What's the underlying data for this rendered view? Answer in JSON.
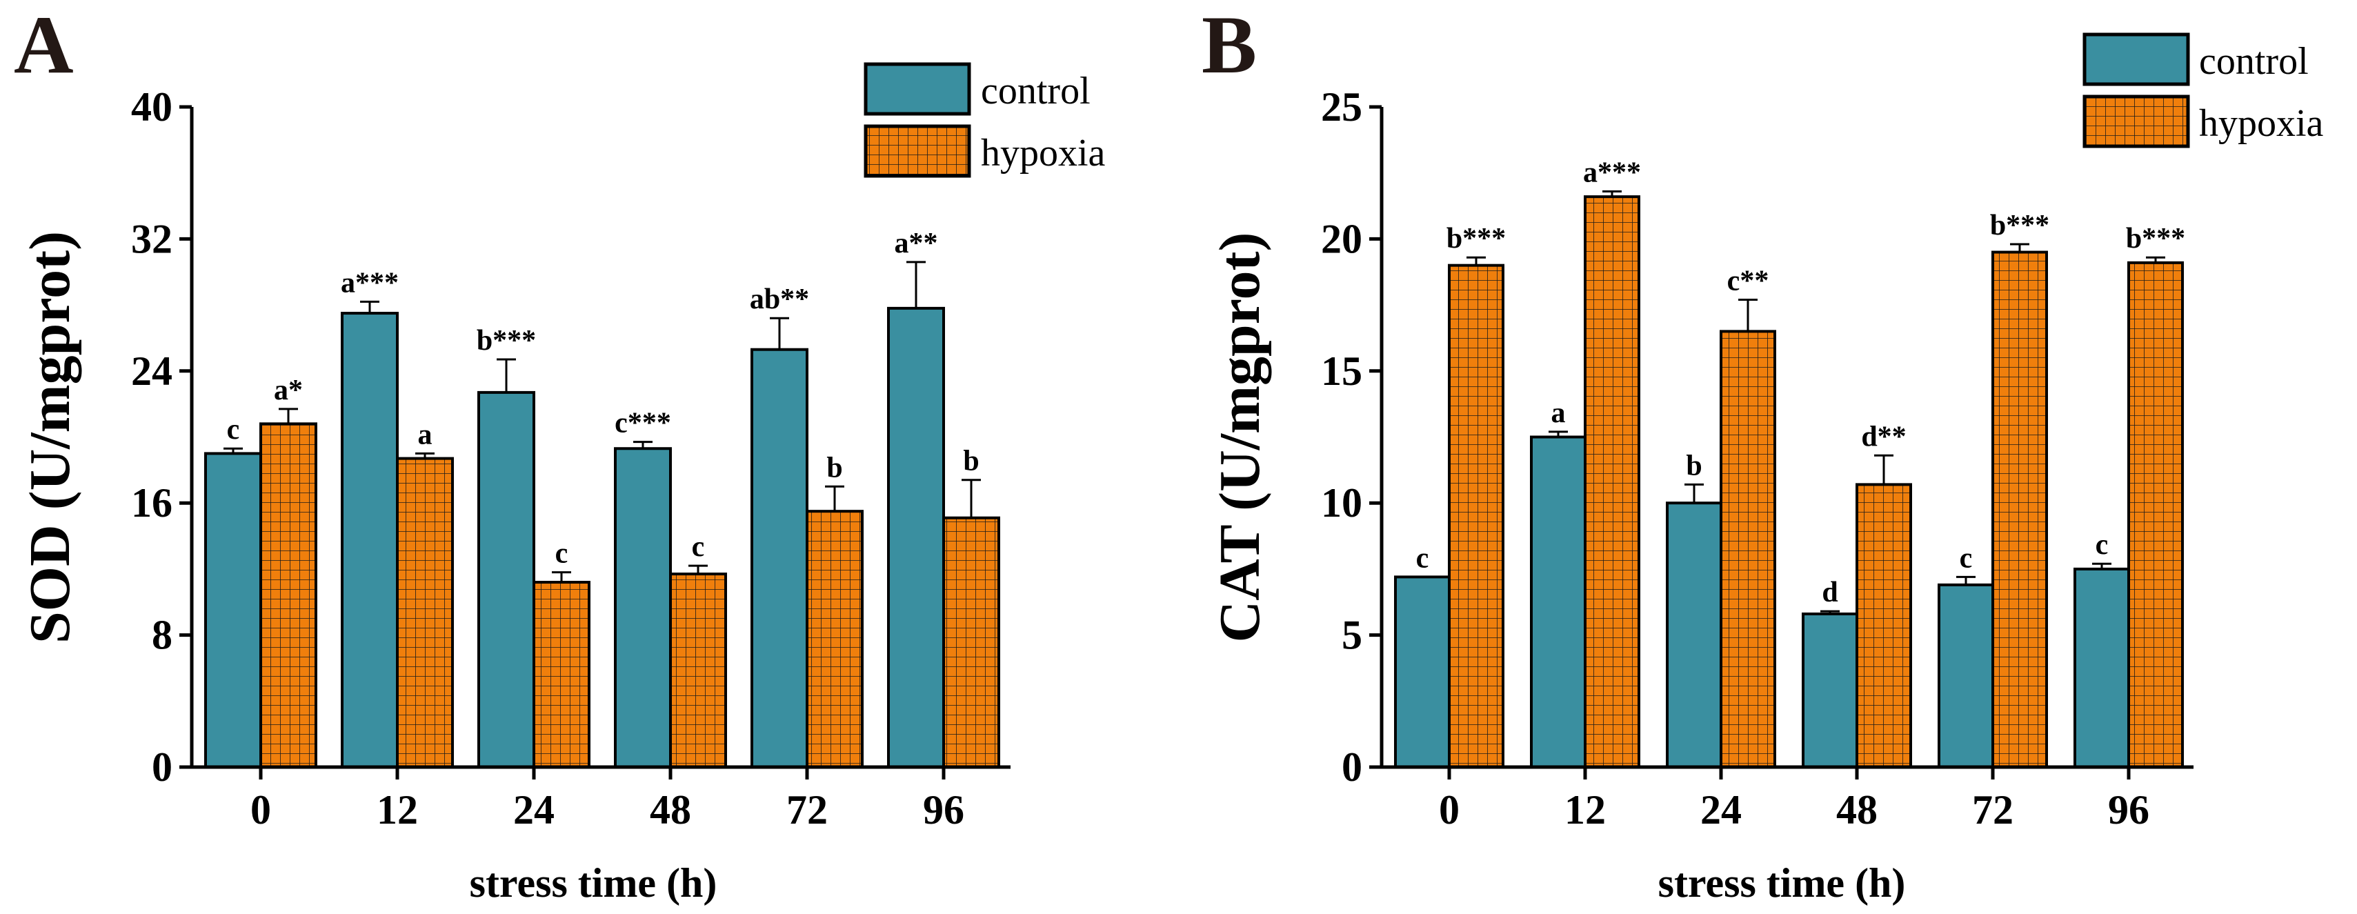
{
  "colors": {
    "control": "#3a8fa0",
    "hypoxia": "#f07f0c",
    "hatch": "#1a1a1a",
    "axis": "#000000",
    "panel_letter": "#231815"
  },
  "chart_data": [
    {
      "panel_label": "A",
      "type": "bar",
      "categories": [
        "0",
        "12",
        "24",
        "48",
        "72",
        "96"
      ],
      "ylabel": "SOD (U/mgprot)",
      "xlabel": "stress time (h)",
      "ylim": [
        0,
        40
      ],
      "yticks": [
        "0",
        "8",
        "16",
        "24",
        "32",
        "40"
      ],
      "legend": [
        "control",
        "hypoxia"
      ],
      "legend_position": "top-right",
      "grid": false,
      "series": [
        {
          "name": "control",
          "values": [
            19.0,
            27.5,
            22.7,
            19.3,
            25.3,
            27.8
          ],
          "errors": [
            0.3,
            0.7,
            2.0,
            0.4,
            1.9,
            2.8
          ],
          "annotations": [
            "c",
            "a***",
            "b***",
            "c***",
            "ab**",
            "a**"
          ]
        },
        {
          "name": "hypoxia",
          "values": [
            20.8,
            18.7,
            11.2,
            11.7,
            15.5,
            15.1
          ],
          "errors": [
            0.9,
            0.3,
            0.6,
            0.5,
            1.5,
            2.3
          ],
          "annotations": [
            "a*",
            "a",
            "c",
            "c",
            "b",
            "b"
          ]
        }
      ]
    },
    {
      "panel_label": "B",
      "type": "bar",
      "categories": [
        "0",
        "12",
        "24",
        "48",
        "72",
        "96"
      ],
      "ylabel": "CAT (U/mgprot)",
      "xlabel": "stress time (h)",
      "ylim": [
        0,
        25
      ],
      "yticks": [
        "0",
        "5",
        "10",
        "15",
        "20",
        "25"
      ],
      "legend": [
        "control",
        "hypoxia"
      ],
      "legend_position": "top-right",
      "grid": false,
      "series": [
        {
          "name": "control",
          "values": [
            7.2,
            12.5,
            10.0,
            5.8,
            6.9,
            7.5
          ],
          "errors": [
            0.0,
            0.2,
            0.7,
            0.1,
            0.3,
            0.2
          ],
          "annotations": [
            "c",
            "a",
            "b",
            "d",
            "c",
            "c"
          ]
        },
        {
          "name": "hypoxia",
          "values": [
            19.0,
            21.6,
            16.5,
            10.7,
            19.5,
            19.1
          ],
          "errors": [
            0.3,
            0.2,
            1.2,
            1.1,
            0.3,
            0.2
          ],
          "annotations": [
            "b***",
            "a***",
            "c**",
            "d**",
            "b***",
            "b***"
          ]
        }
      ]
    }
  ]
}
